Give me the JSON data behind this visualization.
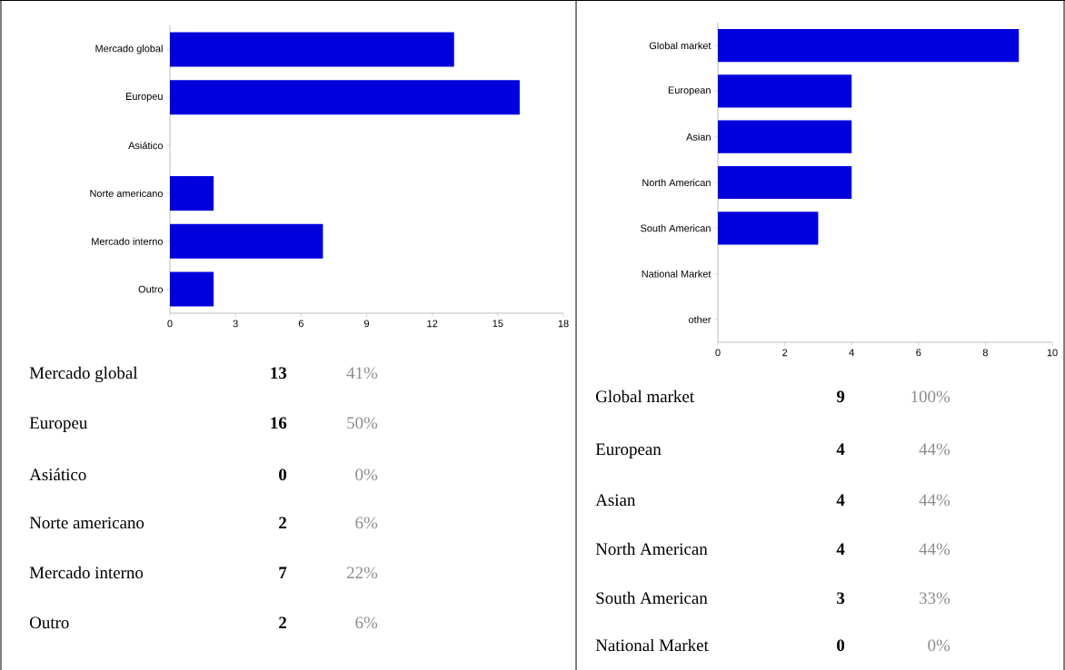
{
  "chart_data": [
    {
      "type": "bar",
      "orientation": "horizontal",
      "categories": [
        "Mercado global",
        "Europeu",
        "Asiático",
        "Norte americano",
        "Mercado interno",
        "Outro"
      ],
      "values": [
        13,
        16,
        0,
        2,
        7,
        2
      ],
      "color": "#0000dd",
      "xlim": [
        0,
        18
      ],
      "xticks": [
        0,
        3,
        6,
        9,
        12,
        15,
        18
      ],
      "annotations": [
        "13",
        "41%",
        "16",
        "50%",
        "0",
        "0%",
        "2",
        "6%",
        "7",
        "22%",
        "2",
        "6%"
      ]
    },
    {
      "type": "bar",
      "orientation": "horizontal",
      "categories": [
        "Global market",
        "European",
        "Asian",
        "North American",
        "South American",
        "National Market",
        "other"
      ],
      "values": [
        9,
        4,
        4,
        4,
        3,
        0,
        0
      ],
      "color": "#0000dd",
      "xlim": [
        0,
        10
      ],
      "xticks": [
        0,
        2,
        4,
        6,
        8,
        10
      ],
      "annotations": [
        "9",
        "100%",
        "4",
        "44%",
        "4",
        "44%",
        "4",
        "44%",
        "3",
        "33%",
        "0",
        "0%"
      ]
    }
  ]
}
